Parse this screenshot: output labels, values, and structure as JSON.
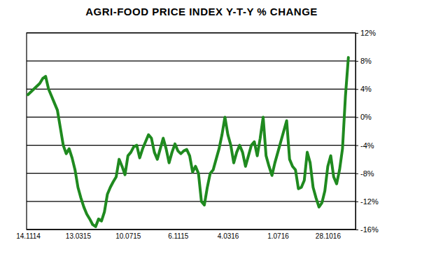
{
  "chart_data": {
    "type": "line",
    "title": "AGRI-FOOD PRICE INDEX Y-T-Y % CHANGE",
    "categories": [
      "14.1114",
      null,
      null,
      null,
      null,
      null,
      null,
      null,
      null,
      null,
      null,
      null,
      null,
      null,
      null,
      null,
      null,
      "13.0315",
      null,
      null,
      null,
      null,
      null,
      null,
      null,
      null,
      null,
      null,
      null,
      null,
      null,
      null,
      null,
      null,
      "10.0715",
      null,
      null,
      null,
      null,
      null,
      null,
      null,
      null,
      null,
      null,
      null,
      null,
      null,
      null,
      null,
      null,
      "6.1115",
      null,
      null,
      null,
      null,
      null,
      null,
      null,
      null,
      null,
      null,
      null,
      null,
      null,
      null,
      null,
      null,
      "4.0316",
      null,
      null,
      null,
      null,
      null,
      null,
      null,
      null,
      null,
      null,
      null,
      null,
      null,
      null,
      null,
      null,
      "1.0716",
      null,
      null,
      null,
      null,
      null,
      null,
      null,
      null,
      null,
      null,
      null,
      null,
      null,
      null,
      null,
      null,
      "28.1016",
      null,
      null,
      null,
      null,
      null,
      null,
      null
    ],
    "values": [
      3.2,
      3.6,
      4.0,
      4.4,
      4.8,
      5.5,
      5.8,
      4.0,
      3.0,
      2.0,
      1.0,
      -1.5,
      -4.0,
      -5.2,
      -4.5,
      -5.8,
      -7.5,
      -10.0,
      -11.5,
      -12.8,
      -13.8,
      -14.5,
      -15.3,
      -15.6,
      -14.5,
      -14.8,
      -13.5,
      -11.0,
      -10.0,
      -9.2,
      -8.5,
      -6.0,
      -7.0,
      -8.2,
      -5.5,
      -5.0,
      -4.2,
      -4.0,
      -5.8,
      -4.5,
      -3.5,
      -2.5,
      -3.0,
      -5.0,
      -6.0,
      -4.5,
      -3.0,
      -4.5,
      -6.5,
      -5.0,
      -3.8,
      -4.8,
      -5.2,
      -4.8,
      -4.6,
      -5.5,
      -7.8,
      -7.0,
      -8.0,
      -12.0,
      -12.5,
      -10.0,
      -8.0,
      -7.5,
      -6.0,
      -4.5,
      -2.5,
      0.0,
      -2.5,
      -4.0,
      -6.5,
      -5.0,
      -4.0,
      -5.0,
      -7.0,
      -5.5,
      -4.0,
      -3.5,
      -5.5,
      -3.0,
      0.0,
      -5.5,
      -7.0,
      -8.3,
      -6.5,
      -5.0,
      -3.5,
      -2.0,
      -0.5,
      -6.0,
      -7.0,
      -7.5,
      -10.2,
      -10.0,
      -9.0,
      -5.0,
      -6.5,
      -10.0,
      -11.5,
      -12.8,
      -12.2,
      -10.5,
      -7.0,
      -5.5,
      -8.5,
      -9.5,
      -7.5,
      -4.5,
      3.0,
      8.5
    ],
    "color": "#1f8a1f",
    "ylim": [
      -16,
      12
    ],
    "yticks": [
      {
        "value": 12,
        "label": "12%"
      },
      {
        "value": 8,
        "label": "8%"
      },
      {
        "value": 4,
        "label": "4%"
      },
      {
        "value": 0,
        "label": "0%"
      },
      {
        "value": -4,
        "label": "-4%"
      },
      {
        "value": -8,
        "label": "-8%"
      },
      {
        "value": -12,
        "label": "-12%"
      },
      {
        "value": -16,
        "label": "-16%"
      }
    ],
    "grid": true
  }
}
